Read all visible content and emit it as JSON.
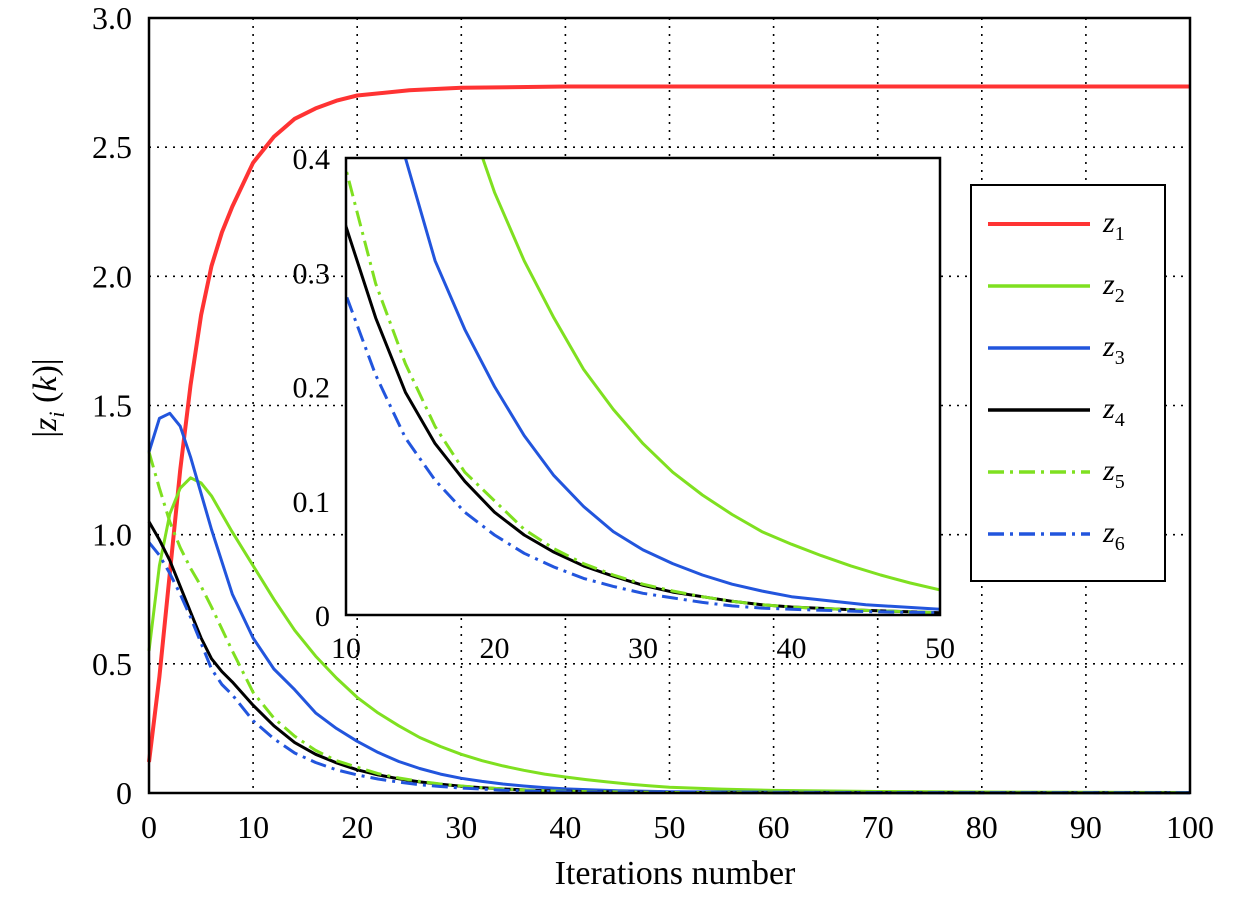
{
  "chart_data": {
    "type": "line",
    "xlabel": "Iterations number",
    "ylabel": "|z_i (k)|",
    "xlim": [
      0,
      100
    ],
    "ylim": [
      0,
      3.0
    ],
    "xticks": [
      "0",
      "10",
      "20",
      "30",
      "40",
      "50",
      "60",
      "70",
      "80",
      "90",
      "100"
    ],
    "yticks": [
      "0",
      "0.5",
      "1.0",
      "1.5",
      "2.0",
      "2.5",
      "3.0"
    ],
    "grid": true,
    "legend_position": "right",
    "series": [
      {
        "name": "z1",
        "label_main": "z",
        "label_sub": "1",
        "color": "#ff3333",
        "dash": "solid",
        "x": [
          0,
          1,
          2,
          3,
          4,
          5,
          6,
          7,
          8,
          10,
          12,
          14,
          16,
          18,
          20,
          25,
          30,
          40,
          50,
          60,
          70,
          80,
          90,
          100
        ],
        "y": [
          0.12,
          0.45,
          0.85,
          1.25,
          1.58,
          1.85,
          2.04,
          2.17,
          2.27,
          2.44,
          2.54,
          2.61,
          2.65,
          2.68,
          2.7,
          2.72,
          2.73,
          2.735,
          2.735,
          2.735,
          2.735,
          2.735,
          2.735,
          2.735
        ]
      },
      {
        "name": "z2",
        "label_main": "z",
        "label_sub": "2",
        "color": "#7fe020",
        "dash": "solid",
        "x": [
          0,
          1,
          2,
          3,
          4,
          5,
          6,
          8,
          10,
          12,
          14,
          16,
          18,
          20,
          22,
          24,
          26,
          28,
          30,
          32,
          34,
          36,
          38,
          40,
          42,
          44,
          46,
          48,
          50,
          55,
          60,
          70,
          80,
          100
        ],
        "y": [
          0.55,
          0.88,
          1.08,
          1.18,
          1.22,
          1.2,
          1.15,
          1.01,
          0.88,
          0.75,
          0.63,
          0.53,
          0.445,
          0.37,
          0.31,
          0.26,
          0.215,
          0.18,
          0.15,
          0.125,
          0.105,
          0.088,
          0.073,
          0.062,
          0.052,
          0.043,
          0.035,
          0.028,
          0.022,
          0.015,
          0.01,
          0.006,
          0.004,
          0.002
        ]
      },
      {
        "name": "z3",
        "label_main": "z",
        "label_sub": "3",
        "color": "#2255dd",
        "dash": "solid",
        "x": [
          0,
          1,
          2,
          3,
          4,
          6,
          8,
          10,
          12,
          14,
          16,
          18,
          20,
          22,
          24,
          26,
          28,
          30,
          32,
          34,
          36,
          38,
          40,
          45,
          50,
          60,
          70,
          80,
          100
        ],
        "y": [
          1.32,
          1.45,
          1.47,
          1.42,
          1.3,
          1.02,
          0.77,
          0.6,
          0.48,
          0.4,
          0.31,
          0.25,
          0.2,
          0.157,
          0.122,
          0.095,
          0.073,
          0.057,
          0.045,
          0.035,
          0.027,
          0.021,
          0.016,
          0.009,
          0.005,
          0.003,
          0.002,
          0.001,
          0.001
        ]
      },
      {
        "name": "z4",
        "label_main": "z",
        "label_sub": "4",
        "color": "#000000",
        "dash": "solid",
        "x": [
          0,
          1,
          2,
          3,
          4,
          5,
          6,
          7,
          8,
          10,
          12,
          14,
          16,
          18,
          20,
          22,
          24,
          26,
          28,
          30,
          32,
          34,
          36,
          38,
          40,
          45,
          50,
          60,
          70,
          80,
          100
        ],
        "y": [
          1.05,
          0.98,
          0.9,
          0.8,
          0.7,
          0.6,
          0.52,
          0.47,
          0.43,
          0.34,
          0.26,
          0.195,
          0.15,
          0.117,
          0.09,
          0.07,
          0.055,
          0.043,
          0.034,
          0.026,
          0.02,
          0.016,
          0.012,
          0.009,
          0.007,
          0.004,
          0.002,
          0.001,
          0.001,
          0.001,
          0.001
        ]
      },
      {
        "name": "z5",
        "label_main": "z",
        "label_sub": "5",
        "color": "#7fe020",
        "dash": "dashdot",
        "x": [
          0,
          1,
          2,
          3,
          4,
          5,
          6,
          8,
          10,
          12,
          14,
          16,
          18,
          20,
          22,
          24,
          26,
          28,
          30,
          32,
          34,
          36,
          38,
          40,
          45,
          50,
          60,
          70,
          80,
          100
        ],
        "y": [
          1.32,
          1.18,
          1.05,
          0.95,
          0.87,
          0.8,
          0.72,
          0.55,
          0.39,
          0.29,
          0.22,
          0.165,
          0.125,
          0.1,
          0.075,
          0.058,
          0.045,
          0.035,
          0.027,
          0.021,
          0.016,
          0.012,
          0.009,
          0.007,
          0.004,
          0.002,
          0.001,
          0.001,
          0.001,
          0.001
        ]
      },
      {
        "name": "z6",
        "label_main": "z",
        "label_sub": "6",
        "color": "#2255dd",
        "dash": "dashdot",
        "x": [
          0,
          1,
          2,
          3,
          4,
          5,
          6,
          7,
          8,
          10,
          12,
          14,
          16,
          18,
          20,
          22,
          24,
          26,
          28,
          30,
          32,
          34,
          36,
          38,
          40,
          45,
          50,
          60,
          70,
          80,
          100
        ],
        "y": [
          0.97,
          0.92,
          0.85,
          0.77,
          0.68,
          0.58,
          0.48,
          0.42,
          0.38,
          0.28,
          0.21,
          0.155,
          0.118,
          0.09,
          0.07,
          0.054,
          0.042,
          0.032,
          0.025,
          0.019,
          0.015,
          0.011,
          0.008,
          0.006,
          0.005,
          0.003,
          0.002,
          0.001,
          0.001,
          0.001,
          0.001
        ]
      }
    ],
    "inset": {
      "xlim": [
        10,
        50
      ],
      "ylim": [
        0,
        0.4
      ],
      "xticks": [
        "10",
        "20",
        "30",
        "40",
        "50"
      ],
      "yticks": [
        "0",
        "0.1",
        "0.2",
        "0.3",
        "0.4"
      ]
    }
  }
}
